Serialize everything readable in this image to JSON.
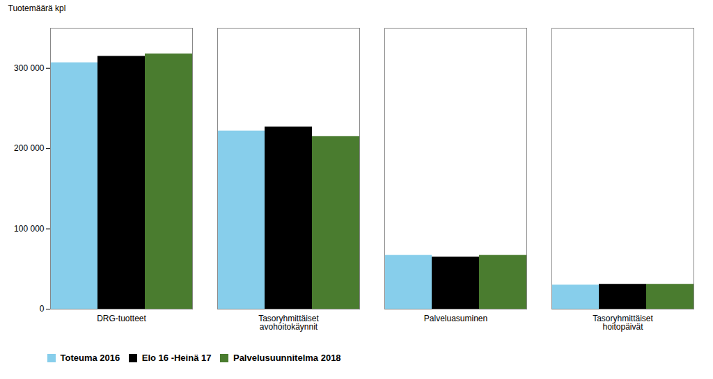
{
  "chart_data": {
    "type": "bar",
    "categories": [
      "DRG-tuotteet",
      "Tasoryhmittäiset\navohoitokäynnit",
      "Palveluasuminen",
      "Tasoryhmittäiset\nhoitopäivät"
    ],
    "series": [
      {
        "name": "Toteuma 2016",
        "color": "#87CEEB",
        "values": [
          307000,
          222000,
          67000,
          30000
        ]
      },
      {
        "name": "Elo 16 -Heinä 17",
        "color": "#000000",
        "values": [
          315000,
          227000,
          65000,
          31000
        ]
      },
      {
        "name": "Palvelusuunnitelma 2018",
        "color": "#4a7c2f",
        "values": [
          318000,
          215000,
          67000,
          31000
        ]
      }
    ],
    "ylabel": "Tuotemäärä kpl",
    "ylim": [
      0,
      350000
    ],
    "yticks": [
      0,
      {
        "value": 100000,
        "label": "100 000"
      },
      {
        "value": 200000,
        "label": "200 000"
      },
      {
        "value": 300000,
        "label": "300 000"
      }
    ],
    "grid": false,
    "legend": "lower left"
  }
}
